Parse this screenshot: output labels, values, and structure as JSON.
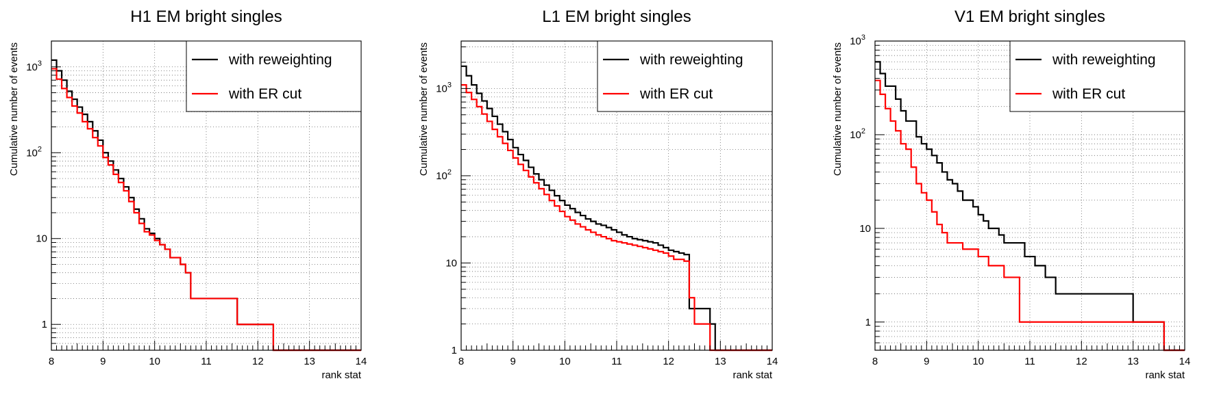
{
  "chart_data": [
    {
      "type": "line",
      "title": "H1 EM bright singles",
      "xlabel": "rank stat",
      "ylabel": "Cumulative number of events",
      "xlim": [
        8,
        14
      ],
      "ylim": [
        0.5,
        2000
      ],
      "yscale": "log",
      "grid": true,
      "legend": "top-right",
      "x_ticks": [
        "8",
        "9",
        "10",
        "11",
        "12",
        "13",
        "14"
      ],
      "y_ticks": [
        {
          "value": 1,
          "label": "1"
        },
        {
          "value": 10,
          "label": "10"
        },
        {
          "value": 100,
          "label": "10",
          "exp": "2"
        },
        {
          "value": 1000,
          "label": "10",
          "exp": "3"
        }
      ],
      "series": [
        {
          "name": "with reweighting",
          "color": "#000000",
          "x": [
            8.0,
            8.1,
            8.2,
            8.3,
            8.4,
            8.5,
            8.6,
            8.7,
            8.8,
            8.9,
            9.0,
            9.1,
            9.2,
            9.3,
            9.4,
            9.5,
            9.6,
            9.7,
            9.8,
            9.9,
            10.0,
            10.1,
            10.2,
            10.3,
            10.5,
            10.6,
            10.7,
            10.8,
            11.6,
            12.3,
            14.0
          ],
          "y": [
            1200,
            900,
            700,
            520,
            420,
            340,
            280,
            230,
            180,
            140,
            100,
            80,
            63,
            50,
            40,
            30,
            22,
            17,
            13,
            11.5,
            10,
            8.5,
            7.5,
            6,
            5,
            4,
            2,
            2,
            1,
            0.5,
            0.5
          ]
        },
        {
          "name": "with ER cut",
          "color": "#ff0000",
          "x": [
            8.0,
            8.1,
            8.2,
            8.3,
            8.4,
            8.5,
            8.6,
            8.7,
            8.8,
            8.9,
            9.0,
            9.1,
            9.2,
            9.3,
            9.4,
            9.5,
            9.6,
            9.7,
            9.8,
            9.9,
            10.0,
            10.1,
            10.2,
            10.3,
            10.5,
            10.6,
            10.7,
            10.8,
            11.6,
            12.3,
            14.0
          ],
          "y": [
            950,
            720,
            560,
            440,
            350,
            290,
            230,
            190,
            150,
            120,
            88,
            72,
            56,
            45,
            36,
            27,
            20,
            15,
            12,
            11,
            9.5,
            8.5,
            7.5,
            6,
            5,
            4,
            2,
            2,
            1,
            0.5,
            0.5
          ]
        }
      ]
    },
    {
      "type": "line",
      "title": "L1 EM bright singles",
      "xlabel": "rank stat",
      "ylabel": "Cumulative number of events",
      "xlim": [
        8,
        14
      ],
      "ylim": [
        1,
        3500
      ],
      "yscale": "log",
      "grid": true,
      "legend": "top-right",
      "x_ticks": [
        "8",
        "9",
        "10",
        "11",
        "12",
        "13",
        "14"
      ],
      "y_ticks": [
        {
          "value": 1,
          "label": "1"
        },
        {
          "value": 10,
          "label": "10"
        },
        {
          "value": 100,
          "label": "10",
          "exp": "2"
        },
        {
          "value": 1000,
          "label": "10",
          "exp": "3"
        }
      ],
      "series": [
        {
          "name": "with reweighting",
          "color": "#000000",
          "x": [
            8.0,
            8.1,
            8.2,
            8.3,
            8.4,
            8.5,
            8.6,
            8.7,
            8.8,
            8.9,
            9.0,
            9.1,
            9.2,
            9.3,
            9.4,
            9.5,
            9.6,
            9.7,
            9.8,
            9.9,
            10.0,
            10.1,
            10.2,
            10.3,
            10.4,
            10.5,
            10.6,
            10.7,
            10.8,
            10.9,
            11.0,
            11.1,
            11.2,
            11.3,
            11.4,
            11.5,
            11.6,
            11.7,
            11.8,
            11.9,
            12.0,
            12.1,
            12.2,
            12.3,
            12.4,
            12.5,
            12.6,
            12.7,
            12.8,
            12.9,
            14.0
          ],
          "y": [
            1800,
            1400,
            1100,
            880,
            720,
            590,
            480,
            390,
            320,
            260,
            210,
            175,
            150,
            125,
            105,
            90,
            78,
            68,
            59,
            52,
            46,
            42,
            38,
            35,
            32,
            30,
            28,
            27,
            25.5,
            24,
            22.5,
            21,
            20,
            19,
            18.5,
            18,
            17.5,
            17,
            16,
            15,
            14,
            13.5,
            13,
            12.5,
            3,
            3,
            3,
            3,
            2,
            1,
            1
          ]
        },
        {
          "name": "with ER cut",
          "color": "#ff0000",
          "x": [
            8.0,
            8.1,
            8.2,
            8.3,
            8.4,
            8.5,
            8.6,
            8.7,
            8.8,
            8.9,
            9.0,
            9.1,
            9.2,
            9.3,
            9.4,
            9.5,
            9.6,
            9.7,
            9.8,
            9.9,
            10.0,
            10.1,
            10.2,
            10.3,
            10.4,
            10.5,
            10.6,
            10.7,
            10.8,
            10.9,
            11.0,
            11.1,
            11.2,
            11.3,
            11.4,
            11.5,
            11.6,
            11.7,
            11.8,
            11.9,
            12.0,
            12.1,
            12.2,
            12.3,
            12.4,
            12.5,
            12.6,
            12.7,
            12.8,
            12.9,
            14.0
          ],
          "y": [
            1100,
            900,
            750,
            620,
            510,
            420,
            340,
            280,
            235,
            195,
            160,
            135,
            115,
            97,
            83,
            71,
            61,
            52,
            45,
            39,
            34,
            31,
            28,
            26,
            24,
            22.5,
            21,
            20,
            19,
            18,
            17.5,
            17,
            16.5,
            16,
            15.5,
            15,
            14.5,
            14,
            13.5,
            13,
            12,
            11,
            11,
            10.5,
            4,
            2,
            2,
            2,
            1,
            1,
            1
          ]
        }
      ]
    },
    {
      "type": "line",
      "title": "V1 EM bright singles",
      "xlabel": "rank stat",
      "ylabel": "Cumulative number of events",
      "xlim": [
        8,
        14
      ],
      "ylim": [
        0.5,
        1000
      ],
      "yscale": "log",
      "grid": true,
      "legend": "top-right",
      "x_ticks": [
        "8",
        "9",
        "10",
        "11",
        "12",
        "13",
        "14"
      ],
      "y_ticks": [
        {
          "value": 1,
          "label": "1"
        },
        {
          "value": 10,
          "label": "10"
        },
        {
          "value": 100,
          "label": "10",
          "exp": "2"
        },
        {
          "value": 1000,
          "label": "10",
          "exp": "3"
        }
      ],
      "series": [
        {
          "name": "with reweighting",
          "color": "#000000",
          "x": [
            8.0,
            8.1,
            8.2,
            8.4,
            8.5,
            8.6,
            8.8,
            8.9,
            9.0,
            9.1,
            9.2,
            9.3,
            9.4,
            9.5,
            9.6,
            9.7,
            9.9,
            10.0,
            10.1,
            10.2,
            10.4,
            10.5,
            10.9,
            11.1,
            11.3,
            11.5,
            13.0,
            13.6,
            14.0
          ],
          "y": [
            600,
            450,
            330,
            240,
            180,
            140,
            95,
            80,
            70,
            60,
            50,
            40,
            33,
            30,
            25,
            20,
            17,
            14,
            12,
            10,
            8.5,
            7,
            5,
            4,
            3,
            2,
            1,
            0.5,
            0.5
          ]
        },
        {
          "name": "with ER cut",
          "color": "#ff0000",
          "x": [
            8.0,
            8.1,
            8.2,
            8.3,
            8.4,
            8.5,
            8.6,
            8.7,
            8.8,
            8.9,
            9.0,
            9.1,
            9.2,
            9.3,
            9.4,
            9.6,
            9.7,
            10.0,
            10.2,
            10.5,
            10.8,
            13.6,
            14.0
          ],
          "y": [
            380,
            270,
            190,
            140,
            110,
            80,
            70,
            45,
            30,
            24,
            20,
            15,
            11,
            9,
            7,
            7,
            6,
            5,
            4,
            3,
            1,
            0.5,
            0.5
          ]
        }
      ]
    }
  ]
}
